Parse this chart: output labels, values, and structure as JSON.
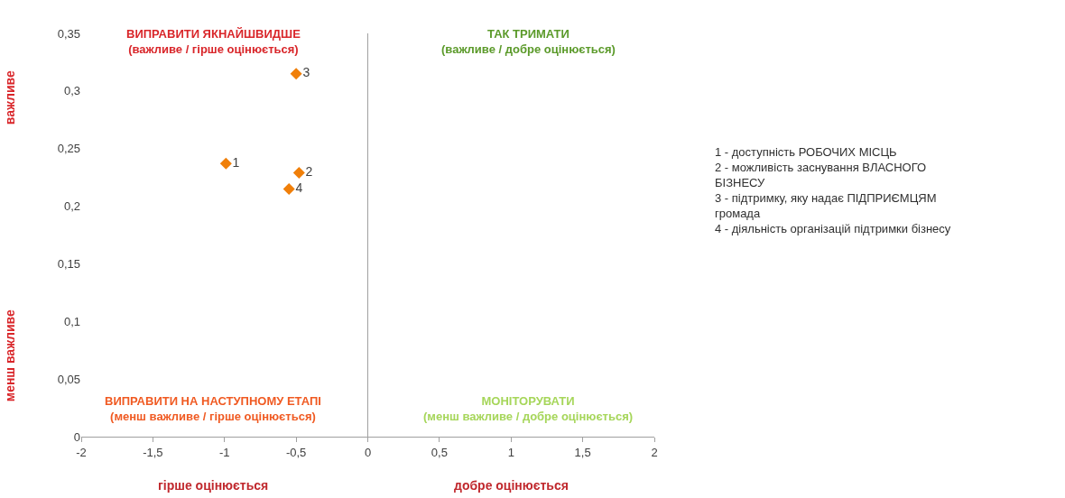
{
  "chart_data": {
    "type": "scatter",
    "marker": "diamond",
    "grid": false,
    "legend": false,
    "series": [
      {
        "name": "1",
        "color": "#f07f09",
        "x": [
          -0.99
        ],
        "values": [
          0.237
        ]
      },
      {
        "name": "2",
        "color": "#f07f09",
        "x": [
          -0.48
        ],
        "values": [
          0.229
        ]
      },
      {
        "name": "3",
        "color": "#f07f09",
        "x": [
          -0.5
        ],
        "values": [
          0.315
        ]
      },
      {
        "name": "4",
        "color": "#f07f09",
        "x": [
          -0.55
        ],
        "values": [
          0.215
        ]
      }
    ],
    "xlim": [
      -2,
      2
    ],
    "ylim": [
      0,
      0.35
    ],
    "xticks": [
      -2,
      {
        "value": -1.5,
        "label": "-1,5"
      },
      -1,
      {
        "value": -0.5,
        "label": "-0,5"
      },
      0,
      {
        "value": 0.5,
        "label": "0,5"
      },
      1,
      {
        "value": 1.5,
        "label": "1,5"
      },
      2
    ],
    "yticks": [
      0,
      {
        "value": 0.05,
        "label": "0,05"
      },
      {
        "value": 0.1,
        "label": "0,1"
      },
      {
        "value": 0.15,
        "label": "0,15"
      },
      {
        "value": 0.2,
        "label": "0,2"
      },
      {
        "value": 0.25,
        "label": "0,25"
      },
      {
        "value": 0.3,
        "label": "0,3"
      },
      {
        "value": 0.35,
        "label": "0,35"
      }
    ],
    "ref_lines": [
      {
        "axis": "x",
        "value": 0,
        "color": "#a0a0a0"
      }
    ],
    "annotations": [
      "ВИПРАВИТИ ЯКНАЙШВИДШЕ\n(важливе / гірше оцінюється)",
      "ТАК ТРИМАТИ\n(важливе / добре оцінюється)",
      "ВИПРАВИТИ НА НАСТУПНОМУ ЕТАПІ\n(менш важливе / гірше оцінюється)",
      "МОНІТОРУВАТИ\n(менш важливе / добре оцінюється)",
      "важливе",
      "менш важливе",
      "гірше оцінюється",
      "добре оцінюється",
      "1 - доступність РОБОЧИХ МІСЦЬ\n2 - можливість заснування ВЛАСНОГО\nБІЗНЕСУ\n3 - підтримку, яку надає ПІДПРИЄМЦЯМ\nгромада\n4 - діяльність організацій підтримки бізнесу"
    ]
  }
}
